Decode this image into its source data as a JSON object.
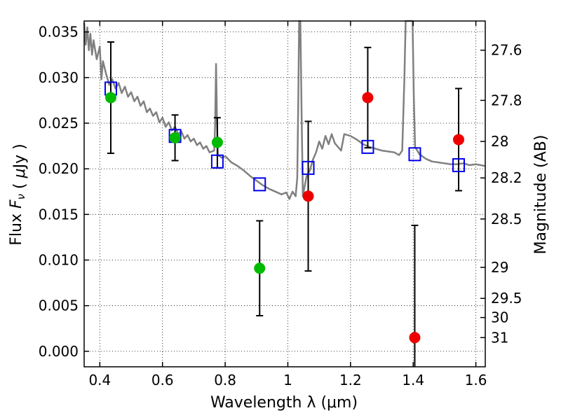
{
  "chart_data": {
    "type": "scatter",
    "xlabel": "Wavelength  λ (μm)",
    "ylabel_left": "Flux  F_ν  ( μJy )",
    "ylabel_right": "Magnitude (AB)",
    "xlim": [
      0.35,
      1.63
    ],
    "ylim": [
      -0.0017,
      0.0362
    ],
    "grid": true,
    "x_ticks": [
      {
        "value": 0.4,
        "label": "0.4"
      },
      {
        "value": 0.6,
        "label": "0.6"
      },
      {
        "value": 0.8,
        "label": "0.8"
      },
      {
        "value": 1.0,
        "label": "1"
      },
      {
        "value": 1.2,
        "label": "1.2"
      },
      {
        "value": 1.4,
        "label": "1.4"
      },
      {
        "value": 1.6,
        "label": "1.6"
      }
    ],
    "y_ticks": [
      {
        "value": 0.0,
        "label": "0.000"
      },
      {
        "value": 0.005,
        "label": "0.005"
      },
      {
        "value": 0.01,
        "label": "0.010"
      },
      {
        "value": 0.015,
        "label": "0.015"
      },
      {
        "value": 0.02,
        "label": "0.020"
      },
      {
        "value": 0.025,
        "label": "0.025"
      },
      {
        "value": 0.03,
        "label": "0.030"
      },
      {
        "value": 0.035,
        "label": "0.035"
      }
    ],
    "right_ticks": [
      {
        "label": "27.6",
        "flux": 0.033
      },
      {
        "label": "27.8",
        "flux": 0.0275
      },
      {
        "label": "28",
        "flux": 0.023
      },
      {
        "label": "28.2",
        "flux": 0.019
      },
      {
        "label": "28.5",
        "flux": 0.0145
      },
      {
        "label": "29",
        "flux": 0.0092
      },
      {
        "label": "29.5",
        "flux": 0.0058
      },
      {
        "label": "30",
        "flux": 0.0037
      },
      {
        "label": "31",
        "flux": 0.0015
      }
    ],
    "series": [
      {
        "color": "#00bb00",
        "marker": "circle",
        "points": [
          {
            "x": 0.435,
            "y": 0.0278,
            "yerr_low": 0.0217,
            "yerr_high": 0.0339
          },
          {
            "x": 0.64,
            "y": 0.0234,
            "yerr_low": 0.0209,
            "yerr_high": 0.0259
          },
          {
            "x": 0.775,
            "y": 0.0229,
            "yerr_low": 0.0201,
            "yerr_high": 0.0256
          },
          {
            "x": 0.91,
            "y": 0.0091,
            "yerr_low": 0.0039,
            "yerr_high": 0.0143
          }
        ]
      },
      {
        "color": "#ee0000",
        "marker": "circle",
        "points": [
          {
            "x": 1.065,
            "y": 0.017,
            "yerr_low": 0.0088,
            "yerr_high": 0.0252
          },
          {
            "x": 1.255,
            "y": 0.0278,
            "yerr_low": 0.0223,
            "yerr_high": 0.0333
          },
          {
            "x": 1.405,
            "y": 0.0015,
            "yerr_low": -0.0017,
            "yerr_high": 0.0138
          },
          {
            "x": 1.545,
            "y": 0.0232,
            "yerr_low": 0.0176,
            "yerr_high": 0.0288
          }
        ]
      },
      {
        "color": "#0000ee",
        "marker": "open-square",
        "points": [
          {
            "x": 0.435,
            "y": 0.0288
          },
          {
            "x": 0.64,
            "y": 0.0236
          },
          {
            "x": 0.775,
            "y": 0.0208
          },
          {
            "x": 0.91,
            "y": 0.0183
          },
          {
            "x": 1.065,
            "y": 0.0201
          },
          {
            "x": 1.255,
            "y": 0.0224
          },
          {
            "x": 1.405,
            "y": 0.0216
          },
          {
            "x": 1.545,
            "y": 0.0204
          }
        ]
      },
      {
        "color": "#808080",
        "marker": "line",
        "points": [
          [
            0.35,
            0.036
          ],
          [
            0.355,
            0.0336
          ],
          [
            0.36,
            0.0355
          ],
          [
            0.365,
            0.033
          ],
          [
            0.37,
            0.0348
          ],
          [
            0.375,
            0.0325
          ],
          [
            0.38,
            0.0341
          ],
          [
            0.39,
            0.032
          ],
          [
            0.4,
            0.0334
          ],
          [
            0.405,
            0.0298
          ],
          [
            0.41,
            0.0318
          ],
          [
            0.42,
            0.0304
          ],
          [
            0.43,
            0.0292
          ],
          [
            0.44,
            0.0298
          ],
          [
            0.45,
            0.0288
          ],
          [
            0.46,
            0.0294
          ],
          [
            0.47,
            0.0283
          ],
          [
            0.48,
            0.029
          ],
          [
            0.49,
            0.0279
          ],
          [
            0.5,
            0.0284
          ],
          [
            0.51,
            0.0274
          ],
          [
            0.52,
            0.0279
          ],
          [
            0.53,
            0.0269
          ],
          [
            0.54,
            0.0274
          ],
          [
            0.55,
            0.0262
          ],
          [
            0.56,
            0.0266
          ],
          [
            0.57,
            0.0258
          ],
          [
            0.58,
            0.0262
          ],
          [
            0.59,
            0.0251
          ],
          [
            0.6,
            0.0256
          ],
          [
            0.61,
            0.0246
          ],
          [
            0.62,
            0.0251
          ],
          [
            0.63,
            0.0242
          ],
          [
            0.64,
            0.0246
          ],
          [
            0.65,
            0.0238
          ],
          [
            0.66,
            0.0241
          ],
          [
            0.67,
            0.0233
          ],
          [
            0.68,
            0.0237
          ],
          [
            0.69,
            0.023
          ],
          [
            0.7,
            0.0233
          ],
          [
            0.71,
            0.0226
          ],
          [
            0.72,
            0.0229
          ],
          [
            0.73,
            0.0222
          ],
          [
            0.74,
            0.0225
          ],
          [
            0.75,
            0.0218
          ],
          [
            0.765,
            0.022
          ],
          [
            0.768,
            0.025
          ],
          [
            0.771,
            0.0315
          ],
          [
            0.774,
            0.025
          ],
          [
            0.777,
            0.0215
          ],
          [
            0.79,
            0.0212
          ],
          [
            0.8,
            0.0214
          ],
          [
            0.82,
            0.0207
          ],
          [
            0.84,
            0.0203
          ],
          [
            0.86,
            0.0198
          ],
          [
            0.88,
            0.0192
          ],
          [
            0.9,
            0.0187
          ],
          [
            0.92,
            0.0182
          ],
          [
            0.94,
            0.0178
          ],
          [
            0.96,
            0.0175
          ],
          [
            0.98,
            0.0172
          ],
          [
            0.995,
            0.0174
          ],
          [
            1.005,
            0.0167
          ],
          [
            1.015,
            0.0175
          ],
          [
            1.025,
            0.017
          ],
          [
            1.03,
            0.019
          ],
          [
            1.033,
            0.0265
          ],
          [
            1.036,
            0.0365
          ],
          [
            1.04,
            0.0365
          ],
          [
            1.044,
            0.026
          ],
          [
            1.048,
            0.017
          ],
          [
            1.052,
            0.0178
          ],
          [
            1.06,
            0.0192
          ],
          [
            1.07,
            0.0198
          ],
          [
            1.08,
            0.021
          ],
          [
            1.09,
            0.0218
          ],
          [
            1.1,
            0.023
          ],
          [
            1.11,
            0.0222
          ],
          [
            1.12,
            0.0236
          ],
          [
            1.13,
            0.0227
          ],
          [
            1.14,
            0.0238
          ],
          [
            1.15,
            0.0228
          ],
          [
            1.16,
            0.0224
          ],
          [
            1.17,
            0.022
          ],
          [
            1.18,
            0.0238
          ],
          [
            1.2,
            0.0236
          ],
          [
            1.22,
            0.0232
          ],
          [
            1.24,
            0.0227
          ],
          [
            1.26,
            0.0224
          ],
          [
            1.28,
            0.0222
          ],
          [
            1.3,
            0.022
          ],
          [
            1.32,
            0.0219
          ],
          [
            1.34,
            0.0218
          ],
          [
            1.355,
            0.0215
          ],
          [
            1.365,
            0.022
          ],
          [
            1.372,
            0.03
          ],
          [
            1.376,
            0.0365
          ],
          [
            1.398,
            0.0365
          ],
          [
            1.402,
            0.028
          ],
          [
            1.406,
            0.0224
          ],
          [
            1.42,
            0.0216
          ],
          [
            1.44,
            0.0211
          ],
          [
            1.46,
            0.0208
          ],
          [
            1.48,
            0.0207
          ],
          [
            1.5,
            0.0206
          ],
          [
            1.52,
            0.0205
          ],
          [
            1.54,
            0.0205
          ],
          [
            1.56,
            0.0206
          ],
          [
            1.58,
            0.0204
          ],
          [
            1.6,
            0.0205
          ],
          [
            1.63,
            0.0203
          ]
        ]
      }
    ]
  }
}
